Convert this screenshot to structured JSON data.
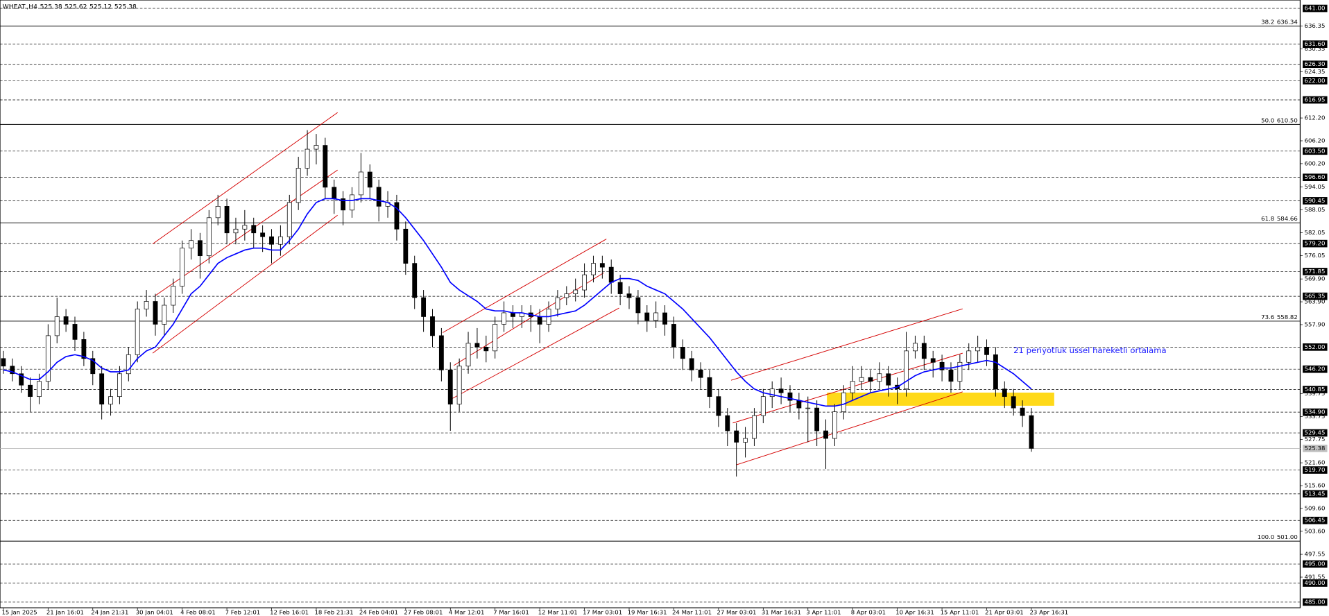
{
  "header": {
    "symbol": "WHEAT.,H4",
    "quote": [
      525.38,
      525.62,
      525.12,
      525.38
    ]
  },
  "chart_data": {
    "type": "candlestick",
    "categories": [
      "15 Jan 2025",
      null,
      null,
      null,
      null,
      "21 Jan 16:01",
      null,
      null,
      null,
      null,
      "24 Jan 21:31",
      null,
      null,
      null,
      null,
      "30 Jan 04:01",
      null,
      null,
      null,
      null,
      "4 Feb 08:01",
      null,
      null,
      null,
      null,
      "7 Feb 12:01",
      null,
      null,
      null,
      null,
      "12 Feb 16:01",
      null,
      null,
      null,
      null,
      "18 Feb 21:31",
      null,
      null,
      null,
      null,
      "24 Feb 04:01",
      null,
      null,
      null,
      null,
      "27 Feb 08:01",
      null,
      null,
      null,
      null,
      "4 Mar 12:01",
      null,
      null,
      null,
      null,
      "7 Mar 16:01",
      null,
      null,
      null,
      null,
      "12 Mar 11:01",
      null,
      null,
      null,
      null,
      "17 Mar 03:01",
      null,
      null,
      null,
      null,
      "19 Mar 16:31",
      null,
      null,
      null,
      null,
      "24 Mar 11:01",
      null,
      null,
      null,
      null,
      "27 Mar 03:01",
      null,
      null,
      null,
      null,
      "31 Mar 16:31",
      null,
      null,
      null,
      null,
      "3 Apr 11:01",
      null,
      null,
      null,
      null,
      "8 Apr 03:01",
      null,
      null,
      null,
      null,
      "10 Apr 16:31",
      null,
      null,
      null,
      null,
      "15 Apr 11:01",
      null,
      null,
      null,
      null,
      "21 Apr 03:01",
      null,
      null,
      null,
      null,
      "23 Apr 16:31"
    ],
    "open": [
      549,
      547,
      545,
      542,
      539,
      543,
      555,
      560,
      558,
      554,
      549,
      545,
      537,
      539,
      545,
      550,
      562,
      564,
      558,
      563,
      568,
      578,
      580,
      576,
      586,
      589,
      582,
      583,
      584,
      582,
      581,
      579,
      581,
      590,
      599,
      604,
      605,
      594,
      591,
      588,
      592,
      598,
      594,
      589,
      590,
      583,
      574,
      565,
      560,
      555,
      546,
      537,
      547,
      553,
      552,
      551,
      558,
      561,
      560,
      561,
      560,
      558,
      562,
      565,
      566,
      567,
      571,
      574,
      573,
      569,
      566,
      565,
      561,
      559,
      561,
      558,
      552,
      549,
      546,
      544,
      539,
      534,
      530,
      527,
      528,
      534,
      539,
      541,
      540,
      538,
      536,
      536,
      530,
      528,
      535,
      540,
      543,
      544,
      543,
      545,
      542,
      541,
      551,
      553,
      549,
      548,
      546,
      543,
      548,
      551,
      552,
      550,
      541,
      539,
      536,
      534
    ],
    "high": [
      551,
      549,
      547,
      544,
      545,
      558,
      565,
      562,
      560,
      556,
      551,
      547,
      541,
      547,
      552,
      564,
      567,
      566,
      565,
      570,
      580,
      583,
      582,
      588,
      592,
      591,
      586,
      588,
      586,
      584,
      583,
      584,
      592,
      602,
      609,
      608,
      607,
      596,
      593,
      594,
      603,
      600,
      596,
      593,
      592,
      585,
      576,
      567,
      562,
      557,
      548,
      549,
      556,
      557,
      555,
      560,
      564,
      563,
      563,
      563,
      562,
      564,
      567,
      568,
      570,
      574,
      576,
      576,
      575,
      571,
      568,
      567,
      563,
      564,
      563,
      560,
      554,
      551,
      548,
      546,
      541,
      536,
      532,
      531,
      536,
      541,
      543,
      544,
      542,
      540,
      539,
      538,
      533,
      537,
      542,
      547,
      547,
      546,
      548,
      547,
      544,
      556,
      555,
      555,
      551,
      550,
      548,
      550,
      553,
      555,
      554,
      552,
      543,
      541,
      538,
      536
    ],
    "low": [
      545,
      543,
      540,
      535,
      537,
      541,
      553,
      556,
      551,
      547,
      542,
      533,
      534,
      537,
      543,
      548,
      560,
      555,
      555,
      561,
      566,
      575,
      570,
      574,
      584,
      579,
      579,
      580,
      578,
      577,
      574,
      576,
      579,
      588,
      597,
      600,
      591,
      587,
      584,
      586,
      590,
      591,
      585,
      586,
      580,
      571,
      562,
      556,
      552,
      543,
      530,
      535,
      545,
      549,
      548,
      549,
      556,
      557,
      557,
      556,
      553,
      556,
      560,
      563,
      564,
      565,
      569,
      570,
      566,
      563,
      562,
      558,
      556,
      557,
      555,
      549,
      546,
      543,
      541,
      536,
      531,
      526,
      518,
      523,
      526,
      532,
      536,
      537,
      535,
      533,
      527,
      526,
      520,
      526,
      533,
      538,
      541,
      540,
      541,
      539,
      537,
      539,
      549,
      546,
      544,
      543,
      540,
      541,
      546,
      548,
      547,
      539,
      536,
      534,
      531,
      524.5
    ],
    "close": [
      547,
      545,
      542,
      539,
      543,
      555,
      560,
      558,
      554,
      549,
      545,
      537,
      539,
      545,
      550,
      562,
      564,
      558,
      563,
      568,
      578,
      580,
      576,
      586,
      589,
      582,
      583,
      584,
      582,
      581,
      579,
      581,
      590,
      599,
      604,
      605,
      594,
      591,
      588,
      592,
      598,
      594,
      589,
      590,
      583,
      574,
      565,
      560,
      555,
      546,
      537,
      547,
      553,
      552,
      551,
      558,
      561,
      560,
      561,
      560,
      558,
      562,
      565,
      566,
      567,
      571,
      574,
      573,
      569,
      566,
      565,
      561,
      559,
      561,
      558,
      552,
      549,
      546,
      544,
      539,
      534,
      530,
      527,
      528,
      534,
      539,
      541,
      540,
      538,
      536,
      536,
      530,
      528,
      535,
      540,
      543,
      544,
      543,
      545,
      542,
      541,
      551,
      553,
      549,
      548,
      546,
      543,
      548,
      551,
      552,
      550,
      541,
      539,
      536,
      534,
      525.38
    ],
    "ema": {
      "color": "#0000ff",
      "values": [
        546,
        545.5,
        544.5,
        543.5,
        543.5,
        545.5,
        548,
        549.5,
        550,
        549.5,
        548.5,
        546.5,
        545.5,
        545.5,
        546,
        549,
        551,
        552,
        555,
        558,
        562,
        566,
        568,
        571,
        574,
        575.5,
        576.5,
        577.5,
        578,
        578,
        577.5,
        577.5,
        580,
        583,
        587,
        590,
        591,
        591,
        590.5,
        590.5,
        591,
        591,
        590.5,
        590,
        588.5,
        586,
        583,
        580,
        576.5,
        573,
        569,
        567,
        565.5,
        564,
        562,
        561.5,
        561.5,
        561,
        561,
        560.5,
        560,
        560,
        560.5,
        561,
        561.5,
        563,
        565,
        567,
        569,
        570,
        570,
        569.5,
        568,
        567,
        566,
        564,
        562,
        559.5,
        557,
        554.5,
        551.5,
        548.5,
        545.5,
        543,
        541,
        540,
        539.5,
        539,
        538.5,
        538,
        537.5,
        537,
        536.5,
        536.5,
        537,
        538,
        539,
        540,
        540.5,
        541,
        541.5,
        543,
        544.5,
        545.5,
        546,
        546.5,
        546.5,
        547,
        547.5,
        548,
        548.5,
        548,
        546.5,
        545,
        543,
        541
      ]
    },
    "annotation": "21 periyotluk üssel hareketli ortalama",
    "ylim": [
      483.5,
      643.2
    ],
    "yticks": [
      {
        "value": 636.35,
        "label": "636.35"
      },
      {
        "value": 630.35,
        "label": "630.35"
      },
      {
        "value": 624.35,
        "label": "624.35"
      },
      {
        "value": 612.2,
        "label": "612.20"
      },
      {
        "value": 606.2,
        "label": "606.20"
      },
      {
        "value": 600.2,
        "label": "600.20"
      },
      {
        "value": 594.05,
        "label": "594.05"
      },
      {
        "value": 588.05,
        "label": "588.05"
      },
      {
        "value": 582.05,
        "label": "582.05"
      },
      {
        "value": 576.05,
        "label": "576.05"
      },
      {
        "value": 569.9,
        "label": "569.90"
      },
      {
        "value": 563.9,
        "label": "563.90"
      },
      {
        "value": 557.9,
        "label": "557.90"
      },
      {
        "value": 539.75,
        "label": "539.75"
      },
      {
        "value": 533.75,
        "label": "533.75"
      },
      {
        "value": 527.75,
        "label": "527.75"
      },
      {
        "value": 521.6,
        "label": "521.60"
      },
      {
        "value": 515.6,
        "label": "515.60"
      },
      {
        "value": 509.6,
        "label": "509.60"
      },
      {
        "value": 503.6,
        "label": "503.60"
      },
      {
        "value": 497.55,
        "label": "497.55"
      },
      {
        "value": 491.55,
        "label": "491.55"
      }
    ],
    "levels": [
      {
        "value": 641,
        "label": "641.00"
      },
      {
        "value": 631.6,
        "label": "631.60"
      },
      {
        "value": 626.3,
        "label": "626.30"
      },
      {
        "value": 622,
        "label": "622.00"
      },
      {
        "value": 616.95,
        "label": "616.95"
      },
      {
        "value": 603.5,
        "label": "603.50"
      },
      {
        "value": 596.6,
        "label": "596.60"
      },
      {
        "value": 590.45,
        "label": "590.45"
      },
      {
        "value": 579.2,
        "label": "579.20"
      },
      {
        "value": 571.85,
        "label": "571.85"
      },
      {
        "value": 565.35,
        "label": "565.35"
      },
      {
        "value": 552,
        "label": "552.00"
      },
      {
        "value": 546.2,
        "label": "546.20"
      },
      {
        "value": 540.85,
        "label": "540.85"
      },
      {
        "value": 534.9,
        "label": "534.90"
      },
      {
        "value": 529.45,
        "label": "529.45"
      },
      {
        "value": 519.7,
        "label": "519.70"
      },
      {
        "value": 513.45,
        "label": "513.45"
      },
      {
        "value": 506.45,
        "label": "506.45"
      },
      {
        "value": 495,
        "label": "495.00"
      },
      {
        "value": 490,
        "label": "490.00"
      },
      {
        "value": 485,
        "label": "485.00"
      }
    ],
    "fibonacci": [
      {
        "ratio": "38.2",
        "price": {
          "value": 636.34,
          "label": "636.34"
        }
      },
      {
        "ratio": "50.0",
        "price": {
          "value": 610.5,
          "label": "610.50"
        }
      },
      {
        "ratio": "61.8",
        "price": {
          "value": 584.66,
          "label": "584.66"
        }
      },
      {
        "ratio": "73.6",
        "price": {
          "value": 558.82,
          "label": "558.82"
        }
      },
      {
        "ratio": "100.0",
        "price": {
          "value": 501,
          "label": "501.00"
        }
      }
    ],
    "last_price": {
      "value": 525.38,
      "label": "525.38"
    },
    "grid": false
  }
}
